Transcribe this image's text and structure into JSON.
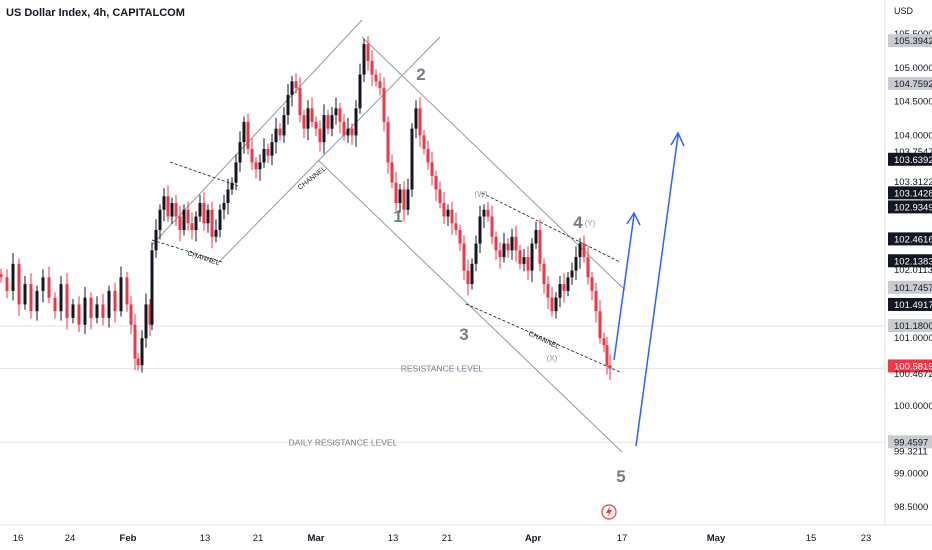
{
  "header": {
    "title": "US Dollar Index, 4h, CAPITALCOM",
    "currency": "USD"
  },
  "chart_data": {
    "type": "candlestick",
    "title": "US Dollar Index, 4h, CAPITALCOM",
    "ylabel": "USD",
    "ylim": [
      98.32,
      105.75
    ],
    "grid": false,
    "y_ticks": [
      "105.5000",
      "105.0000",
      "104.5000",
      "104.0000",
      "101.0000",
      "100.0000",
      "99.0000",
      "98.5000"
    ],
    "x_ticks": [
      "16",
      "24",
      "Feb",
      "13",
      "21",
      "Mar",
      "13",
      "21",
      "Apr",
      "17",
      "May",
      "15",
      "23"
    ],
    "price_tags": [
      {
        "label": "105.3942",
        "price": 105.3942,
        "style": "gray"
      },
      {
        "label": "104.7592",
        "price": 104.7592,
        "style": "gray"
      },
      {
        "label": "103.7547",
        "price": 103.7547,
        "style": "plain"
      },
      {
        "label": "103.6392",
        "price": 103.6392,
        "style": "dark"
      },
      {
        "label": "103.3122",
        "price": 103.3122,
        "style": "plain"
      },
      {
        "label": "103.1428",
        "price": 103.1428,
        "style": "dark"
      },
      {
        "label": "102.9349",
        "price": 102.9349,
        "style": "dark"
      },
      {
        "label": "102.4616",
        "price": 102.4616,
        "style": "dark"
      },
      {
        "label": "102.1383",
        "price": 102.1383,
        "style": "dark"
      },
      {
        "label": "102.0113",
        "price": 102.0113,
        "style": "plain"
      },
      {
        "label": "101.7457",
        "price": 101.7457,
        "style": "gray"
      },
      {
        "label": "101.4917",
        "price": 101.4917,
        "style": "dark"
      },
      {
        "label": "101.1800",
        "price": 101.18,
        "style": "gray"
      },
      {
        "label": "100.5819",
        "price": 100.5819,
        "style": "red"
      },
      {
        "label": "100.4672",
        "price": 100.4672,
        "style": "plain"
      },
      {
        "label": "99.4597",
        "price": 99.4597,
        "style": "gray"
      },
      {
        "label": "99.3211",
        "price": 99.3211,
        "style": "plain"
      }
    ],
    "path_points": [
      [
        1,
        101.9
      ],
      [
        7,
        101.7
      ],
      [
        13,
        102.1
      ],
      [
        19,
        101.5
      ],
      [
        25,
        101.8
      ],
      [
        31,
        101.4
      ],
      [
        37,
        101.7
      ],
      [
        43,
        101.9
      ],
      [
        49,
        101.6
      ],
      [
        55,
        101.4
      ],
      [
        61,
        101.8
      ],
      [
        67,
        101.3
      ],
      [
        73,
        101.5
      ],
      [
        79,
        101.2
      ],
      [
        85,
        101.6
      ],
      [
        91,
        101.3
      ],
      [
        97,
        101.5
      ],
      [
        103,
        101.3
      ],
      [
        109,
        101.7
      ],
      [
        115,
        101.4
      ],
      [
        121,
        101.9
      ],
      [
        127,
        101.5
      ],
      [
        131,
        101.2
      ],
      [
        135,
        100.7
      ],
      [
        138,
        100.6
      ],
      [
        142,
        101.0
      ],
      [
        146,
        101.5
      ],
      [
        150,
        101.2
      ],
      [
        152,
        102.3
      ],
      [
        156,
        102.6
      ],
      [
        160,
        102.9
      ],
      [
        164,
        103.1
      ],
      [
        168,
        102.8
      ],
      [
        172,
        103.0
      ],
      [
        176,
        102.8
      ],
      [
        180,
        102.6
      ],
      [
        184,
        102.9
      ],
      [
        188,
        102.7
      ],
      [
        192,
        102.6
      ],
      [
        196,
        102.8
      ],
      [
        200,
        103.0
      ],
      [
        204,
        102.7
      ],
      [
        208,
        102.9
      ],
      [
        212,
        102.5
      ],
      [
        216,
        102.6
      ],
      [
        220,
        102.9
      ],
      [
        224,
        103.0
      ],
      [
        228,
        103.2
      ],
      [
        232,
        103.3
      ],
      [
        236,
        103.6
      ],
      [
        240,
        103.9
      ],
      [
        244,
        104.2
      ],
      [
        248,
        103.8
      ],
      [
        252,
        103.6
      ],
      [
        256,
        103.5
      ],
      [
        260,
        103.6
      ],
      [
        264,
        103.8
      ],
      [
        268,
        103.7
      ],
      [
        272,
        103.9
      ],
      [
        276,
        104.1
      ],
      [
        280,
        104.0
      ],
      [
        284,
        104.3
      ],
      [
        288,
        104.6
      ],
      [
        292,
        104.8
      ],
      [
        296,
        104.7
      ],
      [
        300,
        104.3
      ],
      [
        304,
        104.1
      ],
      [
        308,
        104.4
      ],
      [
        312,
        104.2
      ],
      [
        316,
        104.1
      ],
      [
        320,
        103.9
      ],
      [
        324,
        104.3
      ],
      [
        328,
        104.1
      ],
      [
        332,
        104.3
      ],
      [
        336,
        104.4
      ],
      [
        340,
        104.2
      ],
      [
        344,
        104.0
      ],
      [
        348,
        104.1
      ],
      [
        352,
        104.0
      ],
      [
        356,
        104.4
      ],
      [
        360,
        104.9
      ],
      [
        364,
        105.35
      ],
      [
        368,
        105.1
      ],
      [
        372,
        104.9
      ],
      [
        376,
        104.8
      ],
      [
        380,
        104.7
      ],
      [
        384,
        104.2
      ],
      [
        388,
        103.6
      ],
      [
        392,
        103.3
      ],
      [
        396,
        103.0
      ],
      [
        400,
        103.2
      ],
      [
        404,
        102.9
      ],
      [
        408,
        103.2
      ],
      [
        412,
        104.1
      ],
      [
        416,
        104.4
      ],
      [
        420,
        104.0
      ],
      [
        424,
        103.8
      ],
      [
        428,
        103.6
      ],
      [
        432,
        103.4
      ],
      [
        436,
        103.2
      ],
      [
        440,
        103.0
      ],
      [
        444,
        102.8
      ],
      [
        448,
        102.9
      ],
      [
        452,
        102.7
      ],
      [
        456,
        102.6
      ],
      [
        460,
        102.4
      ],
      [
        464,
        102.0
      ],
      [
        468,
        101.8
      ],
      [
        472,
        102.1
      ],
      [
        476,
        102.4
      ],
      [
        480,
        102.8
      ],
      [
        484,
        102.9
      ],
      [
        488,
        102.8
      ],
      [
        492,
        102.5
      ],
      [
        496,
        102.3
      ],
      [
        500,
        102.2
      ],
      [
        504,
        102.4
      ],
      [
        508,
        102.3
      ],
      [
        512,
        102.5
      ],
      [
        516,
        102.3
      ],
      [
        520,
        102.1
      ],
      [
        524,
        102.2
      ],
      [
        528,
        102.0
      ],
      [
        532,
        102.4
      ],
      [
        536,
        102.6
      ],
      [
        540,
        102.1
      ],
      [
        544,
        101.8
      ],
      [
        548,
        101.6
      ],
      [
        552,
        101.4
      ],
      [
        556,
        101.6
      ],
      [
        560,
        101.8
      ],
      [
        564,
        101.7
      ],
      [
        568,
        101.9
      ],
      [
        572,
        102.0
      ],
      [
        576,
        102.2
      ],
      [
        580,
        102.4
      ],
      [
        584,
        102.2
      ],
      [
        588,
        101.9
      ],
      [
        592,
        101.7
      ],
      [
        596,
        101.4
      ],
      [
        600,
        101.0
      ],
      [
        604,
        100.9
      ],
      [
        607,
        100.6
      ],
      [
        610,
        100.55
      ]
    ],
    "annotations": {
      "waves": [
        {
          "label": "1",
          "price": 102.9
        },
        {
          "label": "2",
          "price": 105.0
        },
        {
          "label": "3",
          "price": 101.1
        },
        {
          "label": "4",
          "price": 102.7
        },
        {
          "label": "5",
          "price": 98.8
        }
      ],
      "sub_waves": [
        {
          "label": "(W)",
          "price": 103.0
        },
        {
          "label": "(Y)",
          "price": 102.7
        },
        {
          "label": "(X)",
          "price": 100.7
        }
      ],
      "channel_labels": [
        "CHANNEL",
        "CHANNEL",
        "CHANNEL"
      ],
      "levels": [
        {
          "label": "RESISTANCE LEVEL",
          "price": 100.55
        },
        {
          "label": "DAILY RESISTANCE LEVEL",
          "price": 99.46
        }
      ]
    }
  },
  "colors": {
    "up": "#131722",
    "down": "#f23645",
    "grid_line": "#b2b5be",
    "channel": "#9598a1",
    "projection": "#2962ff",
    "tag_dark": "#131722",
    "tag_gray": "#c9cbd1",
    "tag_red": "#f23645"
  },
  "footer": {
    "event_icon": "flash-icon"
  }
}
